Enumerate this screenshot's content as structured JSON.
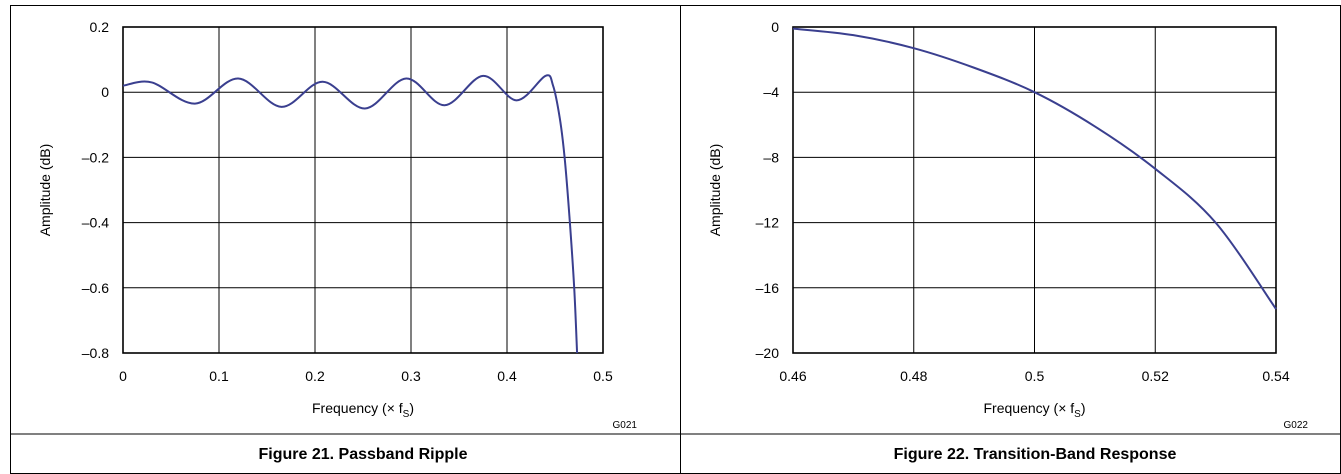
{
  "chart_data": [
    {
      "type": "line",
      "caption": "Figure 21. Passband Ripple",
      "code": "G021",
      "xlabel": "Frequency (× f",
      "xlabel_sub": "S",
      "xlabel_close": ")",
      "ylabel": "Amplitude (dB)",
      "xlim": [
        0,
        0.5
      ],
      "ylim": [
        -0.8,
        0.2
      ],
      "xticks": [
        0,
        0.1,
        0.2,
        0.3,
        0.4,
        0.5
      ],
      "xtick_labels": [
        "0",
        "0.1",
        "0.2",
        "0.3",
        "0.4",
        "0.5"
      ],
      "yticks": [
        0.2,
        0,
        -0.2,
        -0.4,
        -0.6,
        -0.8
      ],
      "ytick_labels": [
        "0.2",
        "0",
        "–0.2",
        "–0.4",
        "–0.6",
        "–0.8"
      ],
      "grid": true,
      "line_color": "#3a3f8f",
      "series": [
        {
          "x": [
            0,
            0.03,
            0.075,
            0.12,
            0.165,
            0.208,
            0.252,
            0.295,
            0.335,
            0.375,
            0.41,
            0.44,
            0.448,
            0.455,
            0.46,
            0.465,
            0.47,
            0.473
          ],
          "y": [
            0.02,
            0.03,
            -0.035,
            0.042,
            -0.045,
            0.032,
            -0.05,
            0.042,
            -0.04,
            0.05,
            -0.025,
            0.05,
            0.02,
            -0.08,
            -0.2,
            -0.38,
            -0.6,
            -0.8
          ]
        }
      ]
    },
    {
      "type": "line",
      "caption": "Figure 22. Transition-Band Response",
      "code": "G022",
      "xlabel": "Frequency (× f",
      "xlabel_sub": "S",
      "xlabel_close": ")",
      "ylabel": "Amplitude (dB)",
      "xlim": [
        0.46,
        0.54
      ],
      "ylim": [
        -20,
        0
      ],
      "xticks": [
        0.46,
        0.48,
        0.5,
        0.52,
        0.54
      ],
      "xtick_labels": [
        "0.46",
        "0.48",
        "0.5",
        "0.52",
        "0.54"
      ],
      "yticks": [
        0,
        -4,
        -8,
        -12,
        -16,
        -20
      ],
      "ytick_labels": [
        "0",
        "–4",
        "–8",
        "–12",
        "–16",
        "–20"
      ],
      "grid": true,
      "line_color": "#3a3f8f",
      "series": [
        {
          "x": [
            0.46,
            0.47,
            0.48,
            0.49,
            0.5,
            0.51,
            0.52,
            0.53,
            0.54
          ],
          "y": [
            -0.1,
            -0.5,
            -1.3,
            -2.5,
            -4.0,
            -6.1,
            -8.7,
            -12.0,
            -17.3
          ]
        }
      ]
    }
  ]
}
